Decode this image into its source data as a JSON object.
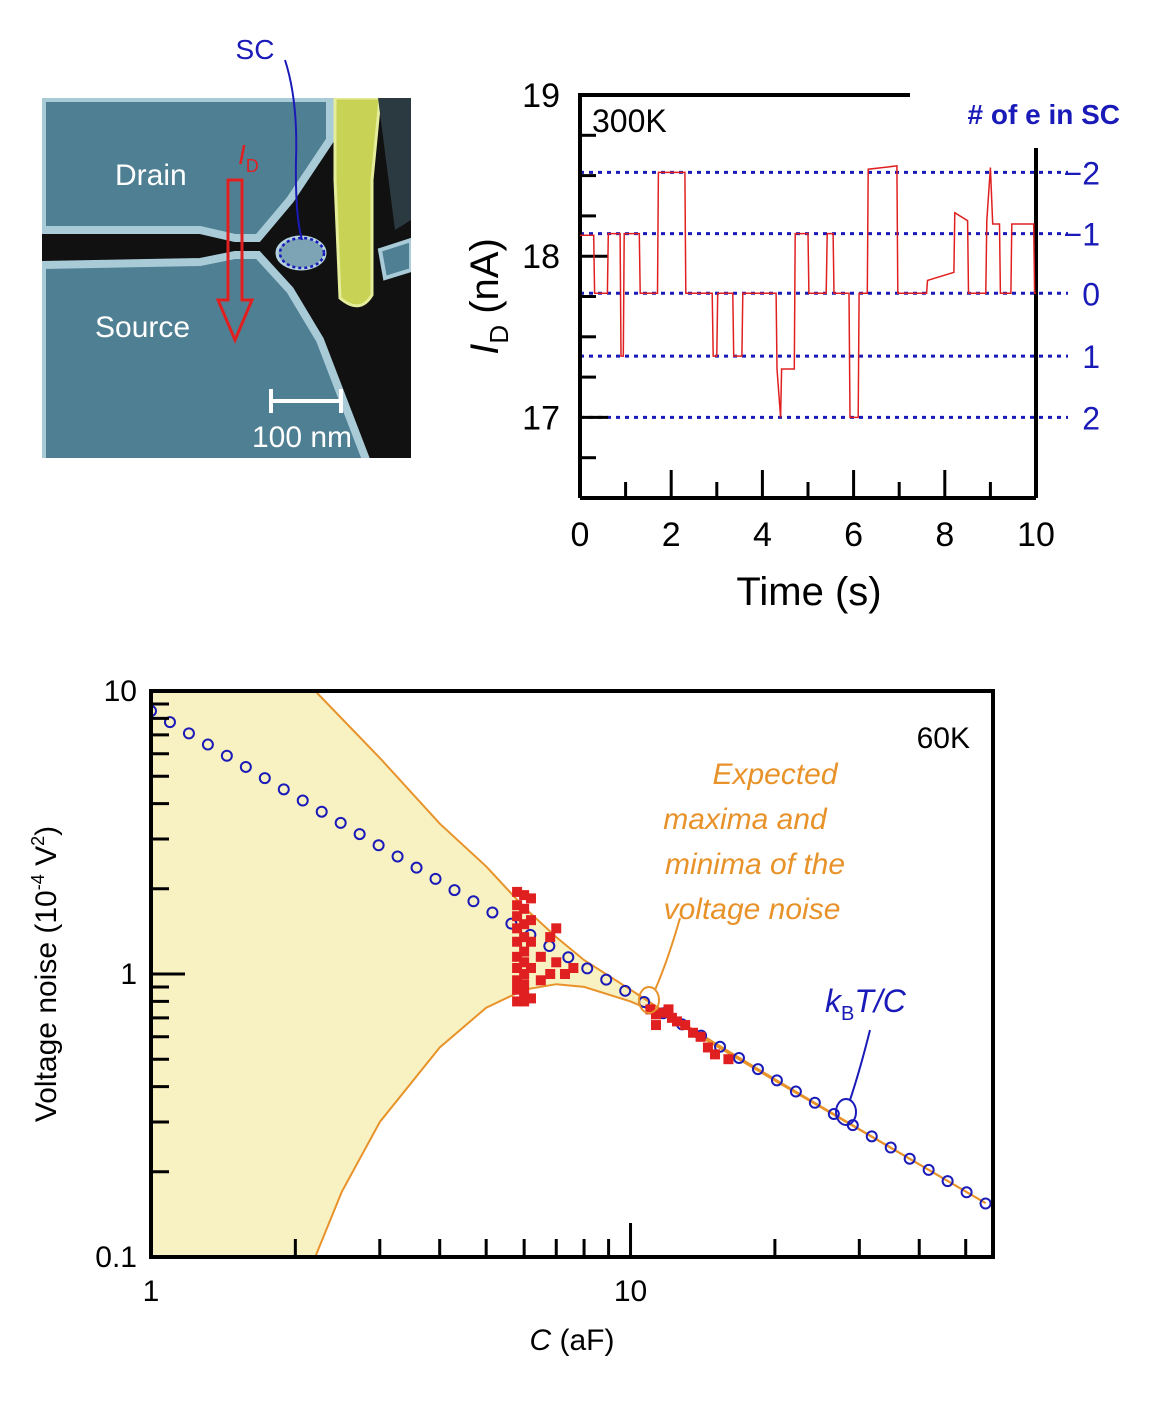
{
  "micrograph": {
    "labels": {
      "sc": "SC",
      "drain": "Drain",
      "source": "Source",
      "current_symbol": "I",
      "current_subscript": "D",
      "scale_bar": "100 nm"
    }
  },
  "trace_chart": {
    "panel_label": "300K",
    "right_axis_title": "# of e in SC",
    "electron_levels": [
      {
        "label": "−2",
        "current": 18.52
      },
      {
        "label": "−1",
        "current": 18.14
      },
      {
        "label": "0",
        "current": 17.77
      },
      {
        "label": "1",
        "current": 17.38
      },
      {
        "label": "2",
        "current": 17.0
      }
    ],
    "colors": {
      "trace": "#e02020",
      "levels": "#1a1ab8",
      "axis": "#000000"
    }
  },
  "noise_chart": {
    "panel_label": "60K",
    "annotations": {
      "expected": [
        "Expected",
        "maxima and",
        "minima of the",
        "voltage noise"
      ],
      "kbtc": {
        "k": "k",
        "k_sub": "B",
        "rest": "T/C"
      }
    },
    "colors": {
      "fill": "#f8f1c2",
      "bounds": "#e8922a",
      "kbtc": "#1a1ab8",
      "measured": "#e02020"
    }
  },
  "chart_data": [
    {
      "type": "line",
      "x": {
        "label": "Time",
        "unit": "(s)",
        "ticks": [
          0,
          2,
          4,
          6,
          8,
          10
        ],
        "range": [
          0,
          10
        ]
      },
      "y": {
        "label": "I",
        "label_sub": "D",
        "unit": "(nA)",
        "ticks": [
          17,
          18,
          19
        ],
        "range": [
          16.5,
          19.0
        ]
      },
      "series": [
        {
          "points": [
            [
              0.0,
              18.13
            ],
            [
              0.3,
              18.13
            ],
            [
              0.32,
              17.77
            ],
            [
              0.6,
              17.77
            ],
            [
              0.62,
              18.14
            ],
            [
              0.88,
              18.14
            ],
            [
              0.9,
              17.38
            ],
            [
              0.95,
              17.38
            ],
            [
              0.97,
              18.14
            ],
            [
              1.3,
              18.14
            ],
            [
              1.32,
              17.77
            ],
            [
              1.7,
              17.77
            ],
            [
              1.72,
              18.52
            ],
            [
              2.3,
              18.52
            ],
            [
              2.32,
              17.77
            ],
            [
              2.9,
              17.77
            ],
            [
              2.92,
              17.38
            ],
            [
              3.0,
              17.38
            ],
            [
              3.02,
              17.77
            ],
            [
              3.35,
              17.77
            ],
            [
              3.37,
              17.38
            ],
            [
              3.55,
              17.38
            ],
            [
              3.57,
              17.77
            ],
            [
              4.3,
              17.77
            ],
            [
              4.32,
              17.3
            ],
            [
              4.4,
              17.0
            ],
            [
              4.42,
              17.3
            ],
            [
              4.7,
              17.3
            ],
            [
              4.72,
              18.14
            ],
            [
              5.0,
              18.14
            ],
            [
              5.02,
              17.77
            ],
            [
              5.4,
              17.77
            ],
            [
              5.42,
              18.14
            ],
            [
              5.55,
              18.14
            ],
            [
              5.57,
              17.77
            ],
            [
              5.9,
              17.77
            ],
            [
              5.92,
              17.0
            ],
            [
              6.1,
              17.0
            ],
            [
              6.12,
              17.77
            ],
            [
              6.3,
              17.77
            ],
            [
              6.32,
              18.54
            ],
            [
              6.95,
              18.56
            ],
            [
              6.97,
              17.77
            ],
            [
              7.6,
              17.77
            ],
            [
              7.62,
              17.85
            ],
            [
              8.2,
              17.9
            ],
            [
              8.22,
              18.27
            ],
            [
              8.5,
              18.22
            ],
            [
              8.52,
              17.77
            ],
            [
              8.9,
              17.77
            ],
            [
              8.92,
              18.22
            ],
            [
              9.0,
              18.55
            ],
            [
              9.05,
              18.2
            ],
            [
              9.2,
              18.2
            ],
            [
              9.22,
              17.77
            ],
            [
              9.45,
              17.77
            ],
            [
              9.47,
              18.2
            ],
            [
              9.95,
              18.2
            ],
            [
              9.97,
              17.77
            ],
            [
              10.0,
              17.77
            ]
          ]
        }
      ]
    },
    {
      "type": "line",
      "x": {
        "label": "C",
        "unit": "(aF)",
        "scale": "log",
        "ticks": [
          1,
          10
        ],
        "range": [
          1,
          57
        ]
      },
      "y": {
        "label": "Voltage noise (10",
        "exponent": "-4",
        "unit_tail": " V",
        "unit_exp": "2",
        "close": ")",
        "scale": "log",
        "ticks": [
          0.1,
          1,
          10
        ],
        "range": [
          0.1,
          10
        ]
      },
      "series": [
        {
          "role": "kBT/C (open circles)",
          "points": [
            [
              1,
              8.5
            ],
            [
              1.2,
              7.1
            ],
            [
              1.5,
              5.67
            ],
            [
              2,
              4.25
            ],
            [
              2.5,
              3.4
            ],
            [
              3,
              2.83
            ],
            [
              4,
              2.12
            ],
            [
              5,
              1.7
            ],
            [
              6,
              1.42
            ],
            [
              7,
              1.21
            ],
            [
              8,
              1.06
            ],
            [
              10,
              0.85
            ],
            [
              12,
              0.71
            ],
            [
              15,
              0.57
            ],
            [
              20,
              0.425
            ],
            [
              25,
              0.34
            ],
            [
              30,
              0.283
            ],
            [
              40,
              0.212
            ],
            [
              55,
              0.155
            ]
          ]
        },
        {
          "role": "expected maxima",
          "points": [
            [
              2.2,
              10
            ],
            [
              3,
              5.8
            ],
            [
              4,
              3.4
            ],
            [
              5,
              2.4
            ],
            [
              6,
              1.72
            ],
            [
              7,
              1.35
            ],
            [
              8,
              1.12
            ],
            [
              10,
              0.88
            ],
            [
              12,
              0.72
            ],
            [
              15,
              0.57
            ],
            [
              20,
              0.425
            ],
            [
              30,
              0.283
            ],
            [
              55,
              0.155
            ]
          ]
        },
        {
          "role": "expected minima",
          "points": [
            [
              2.2,
              0.1
            ],
            [
              2.5,
              0.17
            ],
            [
              3,
              0.3
            ],
            [
              4,
              0.55
            ],
            [
              5,
              0.76
            ],
            [
              6,
              0.88
            ],
            [
              7,
              0.92
            ],
            [
              8,
              0.9
            ],
            [
              10,
              0.8
            ],
            [
              12,
              0.7
            ],
            [
              15,
              0.56
            ],
            [
              20,
              0.42
            ],
            [
              30,
              0.282
            ],
            [
              55,
              0.155
            ]
          ]
        },
        {
          "role": "measured (filled squares)",
          "points": [
            [
              5.8,
              1.95
            ],
            [
              5.8,
              1.75
            ],
            [
              5.8,
              1.6
            ],
            [
              5.8,
              1.45
            ],
            [
              5.8,
              1.3
            ],
            [
              5.8,
              1.15
            ],
            [
              5.8,
              1.05
            ],
            [
              5.8,
              0.95
            ],
            [
              5.8,
              0.88
            ],
            [
              5.8,
              0.8
            ],
            [
              6.0,
              1.9
            ],
            [
              6.0,
              1.7
            ],
            [
              6.0,
              1.5
            ],
            [
              6.0,
              1.35
            ],
            [
              6.0,
              1.2
            ],
            [
              6.0,
              1.1
            ],
            [
              6.0,
              1.0
            ],
            [
              6.0,
              0.92
            ],
            [
              6.0,
              0.85
            ],
            [
              6.0,
              0.8
            ],
            [
              6.2,
              1.85
            ],
            [
              6.2,
              1.55
            ],
            [
              6.2,
              1.3
            ],
            [
              6.2,
              1.05
            ],
            [
              6.2,
              0.82
            ],
            [
              6.5,
              1.15
            ],
            [
              6.5,
              0.95
            ],
            [
              6.8,
              1.35
            ],
            [
              6.8,
              1.0
            ],
            [
              7.0,
              1.45
            ],
            [
              7.0,
              1.1
            ],
            [
              7.3,
              1.0
            ],
            [
              7.6,
              1.05
            ],
            [
              11,
              0.75
            ],
            [
              11.3,
              0.72
            ],
            [
              11.3,
              0.66
            ],
            [
              11.7,
              0.73
            ],
            [
              12,
              0.75
            ],
            [
              12.2,
              0.7
            ],
            [
              12.5,
              0.68
            ],
            [
              13,
              0.66
            ],
            [
              13.5,
              0.62
            ],
            [
              14,
              0.6
            ],
            [
              14.5,
              0.55
            ],
            [
              15,
              0.52
            ],
            [
              16,
              0.5
            ]
          ]
        }
      ]
    }
  ]
}
